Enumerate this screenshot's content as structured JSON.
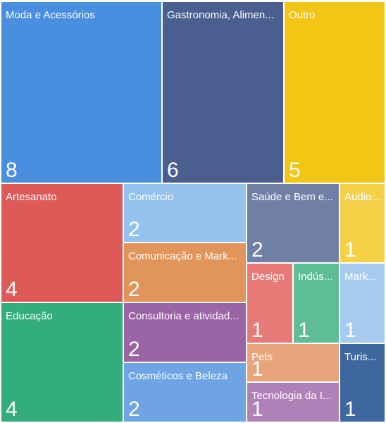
{
  "chart_data": {
    "type": "treemap",
    "title": "",
    "items": [
      {
        "label": "Moda e Acessórios",
        "display_label": "Moda e Acessórios",
        "value": 8,
        "color": "#4a8ee0"
      },
      {
        "label": "Gastronomia, Alimentação",
        "display_label": "Gastronomia, Alimen...",
        "value": 6,
        "color": "#4a5f8f"
      },
      {
        "label": "Outro",
        "display_label": "Outro",
        "value": 5,
        "color": "#f2c614"
      },
      {
        "label": "Artesanato",
        "display_label": "Artesanato",
        "value": 4,
        "color": "#dd5a58"
      },
      {
        "label": "Comércio",
        "display_label": "Comércio",
        "value": 2,
        "color": "#93c2ee"
      },
      {
        "label": "Saúde e Bem estar",
        "display_label": "Saúde e Bem e...",
        "value": 2,
        "color": "#6f7fa6"
      },
      {
        "label": "Audiovisual",
        "display_label": "Audio...",
        "value": 1,
        "color": "#f4d147"
      },
      {
        "label": "Comunicação e Marketing",
        "display_label": "Comunicação e Mark...",
        "value": 2,
        "color": "#e1955a"
      },
      {
        "label": "Design",
        "display_label": "Design",
        "value": 1,
        "color": "#e87a78"
      },
      {
        "label": "Indústria",
        "display_label": "Indús...",
        "value": 1,
        "color": "#5ebd94"
      },
      {
        "label": "Marketing",
        "display_label": "Mark...",
        "value": 1,
        "color": "#a6cbef"
      },
      {
        "label": "Educação",
        "display_label": "Educação",
        "value": 4,
        "color": "#33ad7b"
      },
      {
        "label": "Consultoria e atividades",
        "display_label": "Consultoria e atividad...",
        "value": 2,
        "color": "#9b64a4"
      },
      {
        "label": "Pets",
        "display_label": "Pets",
        "value": 1,
        "color": "#e8a57c"
      },
      {
        "label": "Turismo",
        "display_label": "Turis...",
        "value": 1,
        "color": "#3e67a0"
      },
      {
        "label": "Cosméticos e Beleza",
        "display_label": "Cosméticos e Beleza",
        "value": 2,
        "color": "#6ea4e4"
      },
      {
        "label": "Tecnologia da Informação",
        "display_label": "Tecnologia da I...",
        "value": 1,
        "color": "#b081b8"
      }
    ]
  }
}
